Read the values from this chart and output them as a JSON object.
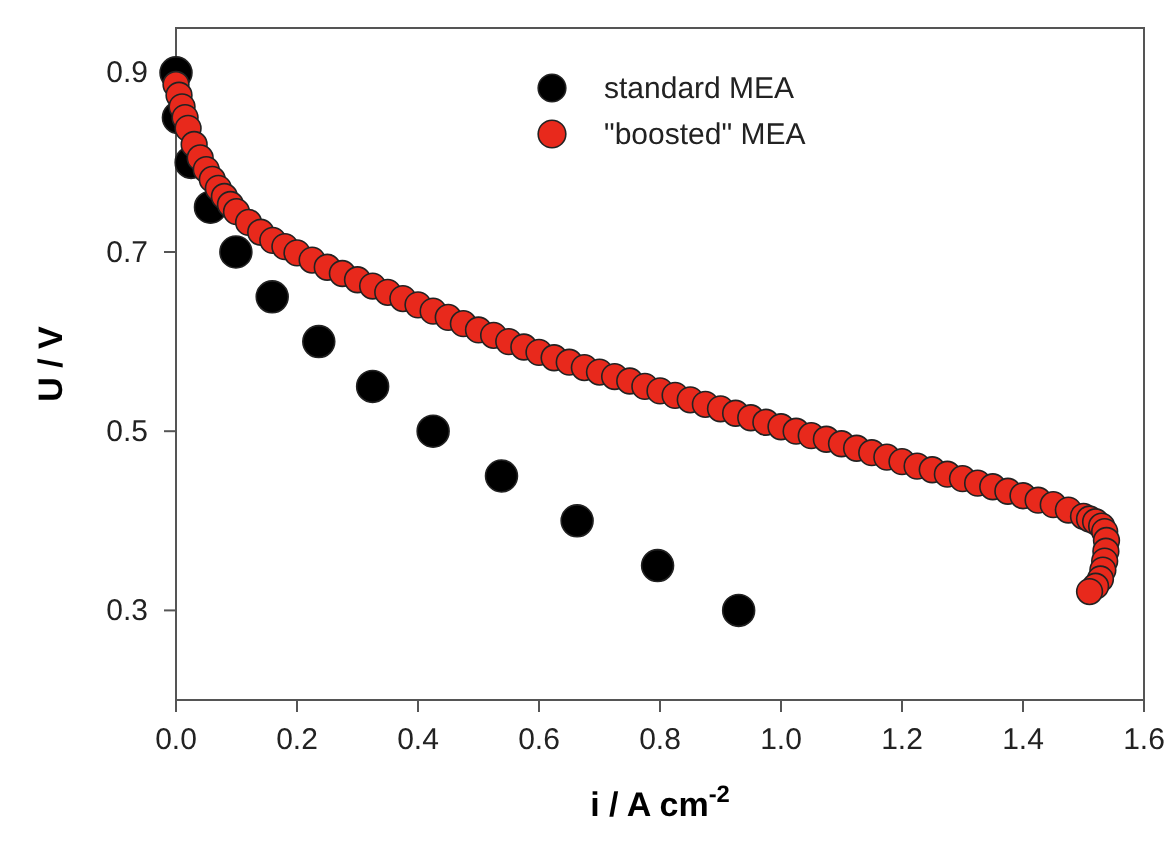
{
  "chart_data": {
    "type": "scatter",
    "xlabel": "i / A cm$^{-2}$",
    "ylabel": "U / V",
    "xlim": [
      0,
      1.6
    ],
    "ylim": [
      0.2,
      0.95
    ],
    "xticks": [
      {
        "value": 0,
        "label": "0.0"
      },
      0.2,
      0.4,
      0.6,
      0.8,
      {
        "value": 1,
        "label": "1.0"
      },
      1.2,
      1.4,
      1.6
    ],
    "yticks": [
      0.3,
      0.5,
      0.7,
      0.9
    ],
    "legend": "top",
    "marker": "circle",
    "grid": false,
    "series": [
      {
        "name": "standard MEA",
        "color": "#000000",
        "x": [
          0,
          0.004,
          0.025,
          0.057,
          0.099,
          0.159,
          0.236,
          0.325,
          0.425,
          0.538,
          0.663,
          0.796,
          0.93
        ],
        "values": [
          0.9,
          0.85,
          0.8,
          0.75,
          0.7,
          0.65,
          0.6,
          0.55,
          0.5,
          0.45,
          0.4,
          0.35,
          0.3
        ]
      },
      {
        "name": "\"boosted\" MEA",
        "color": "#e8291c",
        "x": [
          0,
          0.005,
          0.01,
          0.015,
          0.02,
          0.03,
          0.04,
          0.05,
          0.06,
          0.07,
          0.08,
          0.09,
          0.1,
          0.12,
          0.14,
          0.16,
          0.18,
          0.2,
          0.225,
          0.25,
          0.275,
          0.3,
          0.325,
          0.35,
          0.375,
          0.4,
          0.425,
          0.45,
          0.475,
          0.5,
          0.525,
          0.55,
          0.575,
          0.6,
          0.625,
          0.65,
          0.675,
          0.7,
          0.725,
          0.75,
          0.775,
          0.8,
          0.825,
          0.85,
          0.875,
          0.9,
          0.925,
          0.95,
          0.975,
          1,
          1.025,
          1.05,
          1.075,
          1.1,
          1.125,
          1.15,
          1.175,
          1.2,
          1.225,
          1.25,
          1.275,
          1.3,
          1.325,
          1.35,
          1.375,
          1.4,
          1.425,
          1.45,
          1.475,
          1.5,
          1.51,
          1.52,
          1.53,
          1.535,
          1.538,
          1.537,
          1.535,
          1.532,
          1.528,
          1.52,
          1.51
        ],
        "values": [
          0.887,
          0.875,
          0.862,
          0.85,
          0.838,
          0.82,
          0.805,
          0.792,
          0.781,
          0.771,
          0.762,
          0.753,
          0.745,
          0.733,
          0.722,
          0.713,
          0.706,
          0.699,
          0.691,
          0.683,
          0.676,
          0.669,
          0.662,
          0.655,
          0.648,
          0.641,
          0.634,
          0.627,
          0.62,
          0.613,
          0.607,
          0.6,
          0.594,
          0.588,
          0.582,
          0.577,
          0.571,
          0.566,
          0.561,
          0.556,
          0.55,
          0.545,
          0.54,
          0.535,
          0.53,
          0.525,
          0.52,
          0.515,
          0.51,
          0.505,
          0.5,
          0.495,
          0.491,
          0.486,
          0.481,
          0.476,
          0.471,
          0.466,
          0.461,
          0.457,
          0.452,
          0.447,
          0.442,
          0.438,
          0.433,
          0.428,
          0.423,
          0.418,
          0.412,
          0.405,
          0.402,
          0.399,
          0.394,
          0.388,
          0.378,
          0.366,
          0.355,
          0.345,
          0.335,
          0.327,
          0.321
        ]
      }
    ]
  }
}
